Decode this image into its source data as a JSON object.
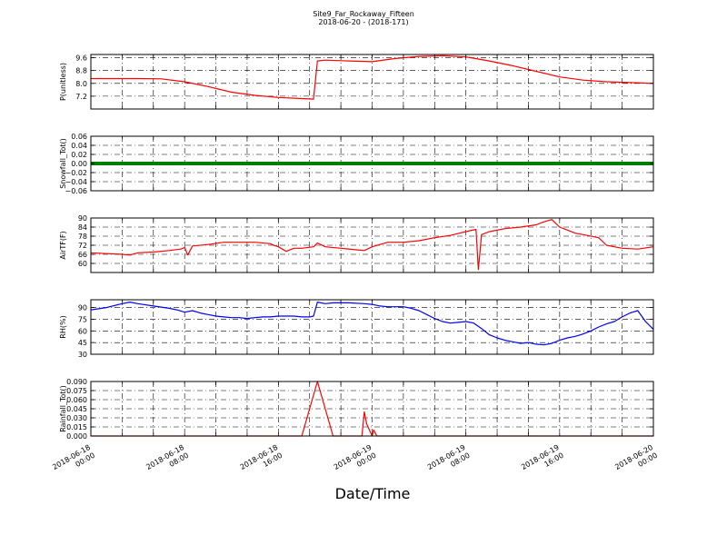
{
  "figure": {
    "title": "Site9_Far_Rockaway_Fifteen",
    "subtitle": "2018-06-20 - (2018-171)",
    "xlabel": "Date/Time",
    "x_ticks": [
      [
        "2018-06-18",
        "00:00"
      ],
      [
        "2018-06-18",
        "08:00"
      ],
      [
        "2018-06-18",
        "16:00"
      ],
      [
        "2018-06-19",
        "00:00"
      ],
      [
        "2018-06-19",
        "08:00"
      ],
      [
        "2018-06-19",
        "16:00"
      ],
      [
        "2018-06-20",
        "00:00"
      ]
    ]
  },
  "chart_data": [
    {
      "type": "line",
      "ylabel": "P(unitless)",
      "ylim": [
        6.4,
        9.8
      ],
      "yticks": [
        7.2,
        8.0,
        8.8,
        9.6
      ],
      "ytick_labels": [
        "7.2",
        "8.0",
        "8.8",
        "9.6"
      ],
      "grid": true,
      "color": "#ff0000",
      "x_hours": [
        0,
        3,
        6,
        9,
        12,
        15,
        18,
        21,
        24,
        27,
        28.5,
        29,
        30,
        33,
        36,
        39,
        42,
        45,
        48,
        51,
        54,
        57,
        60,
        63,
        66,
        69,
        72
      ],
      "values": [
        8.3,
        8.3,
        8.3,
        8.28,
        8.1,
        7.8,
        7.45,
        7.25,
        7.12,
        7.05,
        7.02,
        9.4,
        9.45,
        9.4,
        9.35,
        9.55,
        9.68,
        9.72,
        9.65,
        9.4,
        9.1,
        8.75,
        8.4,
        8.2,
        8.1,
        8.05,
        8.0
      ]
    },
    {
      "type": "line",
      "ylabel": "Snowfall_Tot()",
      "ylim": [
        -0.06,
        0.06
      ],
      "yticks": [
        -0.06,
        -0.04,
        -0.02,
        0.0,
        0.02,
        0.04,
        0.06
      ],
      "ytick_labels": [
        "−0.06",
        "−0.04",
        "−0.02",
        "0.00",
        "0.02",
        "0.04",
        "0.06"
      ],
      "grid": true,
      "color": "#007f00",
      "x_hours": [
        0,
        72
      ],
      "values": [
        0.0,
        0.0
      ]
    },
    {
      "type": "line",
      "ylabel": "AirTF(F)",
      "ylim": [
        54,
        90
      ],
      "yticks": [
        60,
        66,
        72,
        78,
        84,
        90
      ],
      "ytick_labels": [
        "60",
        "66",
        "72",
        "78",
        "84",
        "90"
      ],
      "grid": true,
      "color": "#ff0000",
      "x_hours": [
        0,
        2,
        4,
        5,
        6,
        8,
        10,
        11.5,
        12,
        12.4,
        13,
        15,
        17,
        19,
        21,
        23,
        23.4,
        24,
        25,
        26,
        27,
        28.5,
        29,
        30,
        32,
        34,
        35,
        36,
        38,
        40,
        42,
        44,
        46,
        48,
        49.3,
        49.6,
        50,
        51,
        53,
        55,
        57,
        58,
        59,
        60,
        61,
        62,
        63,
        65,
        66,
        67,
        68,
        70,
        72
      ],
      "values": [
        67,
        66.5,
        66,
        65.5,
        67,
        67.5,
        68.5,
        69.5,
        70.5,
        65.5,
        71.5,
        72.5,
        74,
        74,
        74,
        73,
        72,
        71,
        68,
        70,
        70,
        71,
        73.5,
        71,
        70,
        69,
        68.5,
        71,
        74,
        74,
        75,
        77,
        78.5,
        81,
        82.5,
        56,
        79,
        81,
        83,
        84,
        85.5,
        87.5,
        89,
        84,
        82,
        80,
        79,
        77,
        72,
        71,
        70,
        69.5,
        71
      ]
    },
    {
      "type": "line",
      "ylabel": "RH(%)",
      "ylim": [
        30,
        100
      ],
      "yticks": [
        30,
        45,
        60,
        75,
        90
      ],
      "ytick_labels": [
        "30",
        "45",
        "60",
        "75",
        "90"
      ],
      "grid": true,
      "color": "#0000ff",
      "x_hours": [
        0,
        2,
        4,
        5,
        6,
        8,
        10,
        11,
        12,
        13,
        14,
        15,
        16,
        17,
        18,
        19,
        20,
        21,
        22,
        23,
        24,
        25,
        26,
        27,
        28,
        28.5,
        29,
        30,
        31,
        33,
        35,
        36,
        37,
        38,
        40,
        41,
        42,
        43,
        44,
        45,
        46,
        47,
        48,
        49,
        50,
        51,
        52,
        53,
        54,
        55,
        56,
        57,
        58,
        59,
        60,
        61,
        62,
        63,
        64,
        65,
        66,
        67,
        68,
        69,
        70,
        71,
        72
      ],
      "values": [
        87,
        90,
        95,
        97,
        95,
        92,
        89,
        87,
        84,
        86,
        83,
        81,
        79,
        78,
        77,
        77,
        76,
        77,
        78,
        78,
        79,
        79,
        79,
        78,
        78,
        79,
        97,
        95,
        96,
        96,
        95,
        94,
        92,
        91,
        91,
        89,
        86,
        81,
        76,
        72,
        70,
        71,
        72,
        70,
        63,
        55,
        51,
        48,
        46,
        44,
        45,
        43,
        42,
        44,
        48,
        51,
        53,
        56,
        60,
        65,
        69,
        72,
        78,
        83,
        86,
        72,
        62
      ]
    },
    {
      "type": "line",
      "ylabel": "Rainfall_Tot()",
      "ylim": [
        0.0,
        0.09
      ],
      "yticks": [
        0.0,
        0.015,
        0.03,
        0.045,
        0.06,
        0.075,
        0.09
      ],
      "ytick_labels": [
        "0.000",
        "0.015",
        "0.030",
        "0.045",
        "0.060",
        "0.075",
        "0.090"
      ],
      "grid": true,
      "color": "#ff0000",
      "x_hours": [
        0,
        27,
        28,
        29,
        30,
        31,
        33,
        34.7,
        35,
        35.3,
        36,
        36.2,
        36.6,
        36.9,
        72
      ],
      "values": [
        0.0,
        0.0,
        0.045,
        0.09,
        0.045,
        0.0,
        0.0,
        0.0,
        0.04,
        0.02,
        0.0,
        0.01,
        0.0,
        0.0,
        0.0
      ]
    }
  ]
}
